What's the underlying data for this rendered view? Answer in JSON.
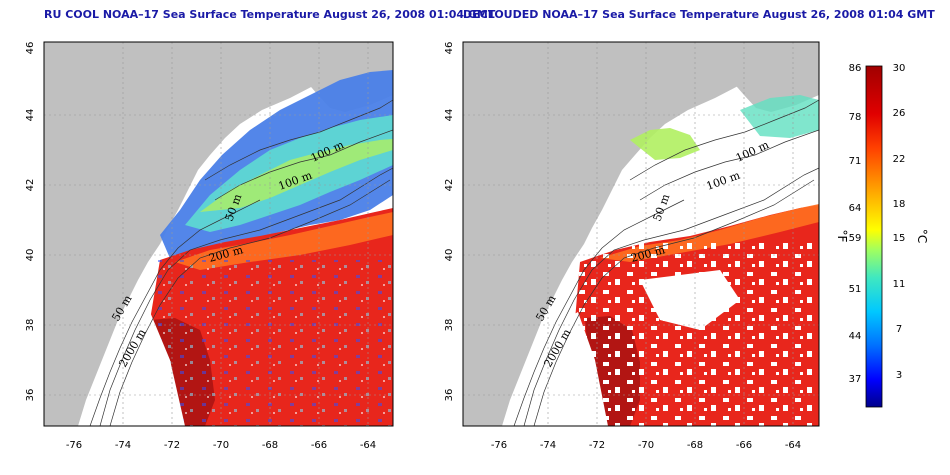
{
  "maps": [
    {
      "title": "RU COOL NOAA–17 Sea Surface Temperature August 26, 2008 01:04 GMT",
      "contour_labels": [
        "100 m",
        "100 m",
        "50 m",
        "200 m",
        "50 m",
        "2000 m"
      ]
    },
    {
      "title": "DECLOUDED NOAA–17 Sea Surface Temperature August 26, 2008 01:04 GMT",
      "contour_labels": [
        "100 m",
        "100 m",
        "50 m",
        "200 m",
        "50 m",
        "2000 m"
      ]
    }
  ],
  "axes": {
    "x_ticks": [
      "-76",
      "-74",
      "-72",
      "-70",
      "-68",
      "-66",
      "-64"
    ],
    "y_ticks": [
      "46",
      "44",
      "42",
      "40",
      "38",
      "36"
    ],
    "lon_range": [
      -77.1,
      -62.8
    ],
    "lat_range": [
      35.0,
      46.0
    ]
  },
  "colorbar": {
    "f_ticks": [
      "86",
      "78",
      "71",
      "64",
      "59",
      "51",
      "44",
      "37"
    ],
    "c_ticks": [
      "30",
      "26",
      "22",
      "18",
      "15",
      "11",
      "7",
      "3"
    ],
    "f_unit": "°F",
    "c_unit": "°C",
    "colors": [
      "#00008b",
      "#0000ff",
      "#0060ff",
      "#00c0ff",
      "#40e0c0",
      "#80ff80",
      "#c0ff40",
      "#ffff00",
      "#ffc000",
      "#ff8000",
      "#ff4000",
      "#e00000",
      "#b00000"
    ]
  },
  "colors": {
    "land": "#c0c0c0",
    "grid": "#999999",
    "title": "#1a1aa6"
  }
}
